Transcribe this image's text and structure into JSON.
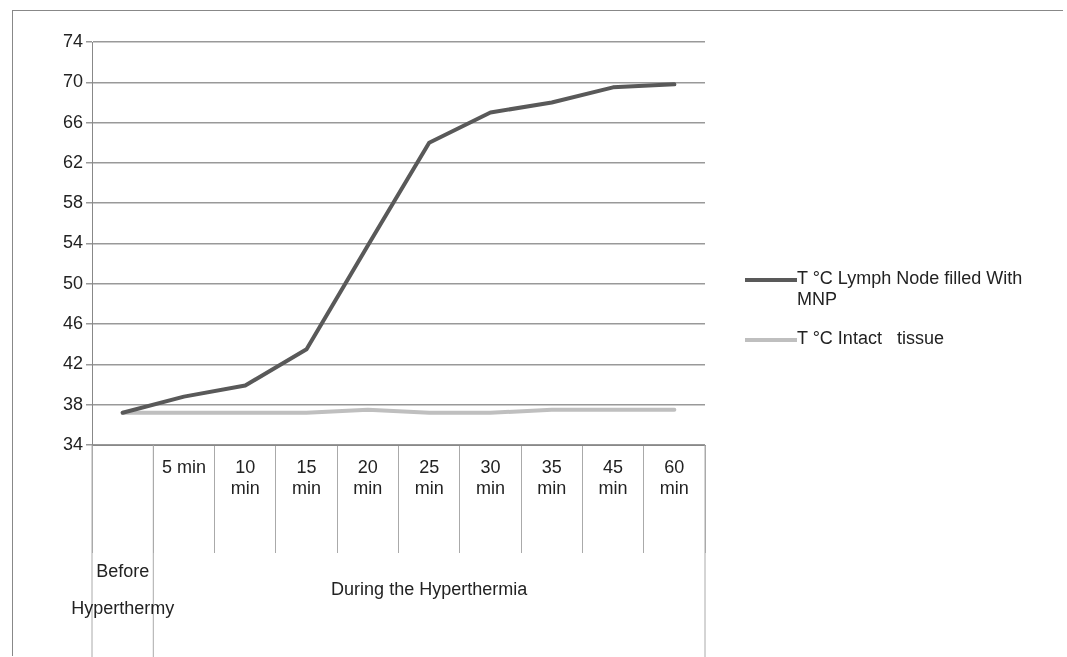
{
  "chart_data": {
    "type": "line",
    "categories": [
      null,
      "5 min",
      "10 min",
      "15 min",
      "20 min",
      "25 min",
      "30 min",
      "35 min",
      "45 min",
      "60 min"
    ],
    "series": [
      {
        "name": "T °C Lymph Node filled With MNP",
        "color": "#595959",
        "values": [
          37.2,
          38.8,
          39.9,
          43.5,
          53.8,
          64,
          67,
          68,
          69.5,
          69.8
        ]
      },
      {
        "name": "T °C Intact   tissue",
        "color": "#bfbfbf",
        "values": [
          37.2,
          37.2,
          37.2,
          37.2,
          37.5,
          37.2,
          37.2,
          37.5,
          37.5,
          37.5
        ]
      }
    ],
    "ylim": [
      34,
      74
    ],
    "yticks": [
      34,
      38,
      42,
      46,
      50,
      54,
      58,
      62,
      66,
      70,
      74
    ],
    "grid": "y",
    "legend": "right",
    "marker": "none",
    "line_style": "solid",
    "annotations": [
      "Before Hyperthermy",
      "During the Hyperthermia"
    ]
  }
}
